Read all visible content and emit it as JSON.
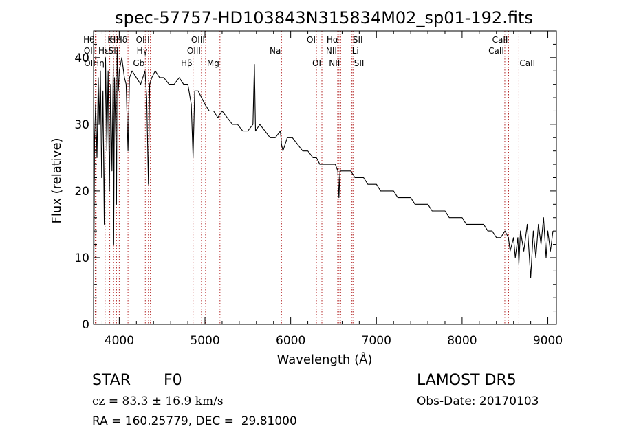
{
  "chart_data": {
    "type": "line",
    "title": "spec-57757-HD103843N315834M02_sp01-192.fits",
    "xlabel": "Wavelength (Å)",
    "ylabel": "Flux (relative)",
    "xlim": [
      3700,
      9100
    ],
    "ylim": [
      0,
      44
    ],
    "xticks": [
      4000,
      5000,
      6000,
      7000,
      8000,
      9000
    ],
    "yticks": [
      0,
      10,
      20,
      30,
      40
    ],
    "grid": false,
    "line_color": "#000000",
    "marker_color": "#b22222",
    "spectrum": {
      "x": [
        3700,
        3712,
        3725,
        3740,
        3755,
        3765,
        3780,
        3795,
        3810,
        3825,
        3840,
        3855,
        3870,
        3885,
        3900,
        3915,
        3930,
        3935,
        3945,
        3960,
        3968,
        3975,
        3990,
        4000,
        4030,
        4060,
        4080,
        4102,
        4120,
        4150,
        4200,
        4250,
        4300,
        4320,
        4340,
        4355,
        4380,
        4420,
        4470,
        4520,
        4580,
        4640,
        4700,
        4750,
        4800,
        4840,
        4861,
        4880,
        4920,
        4960,
        5000,
        5050,
        5100,
        5150,
        5200,
        5260,
        5320,
        5380,
        5440,
        5500,
        5560,
        5577,
        5590,
        5640,
        5700,
        5760,
        5820,
        5880,
        5893,
        5910,
        5960,
        6020,
        6080,
        6140,
        6200,
        6260,
        6300,
        6340,
        6400,
        6460,
        6520,
        6550,
        6563,
        6575,
        6600,
        6650,
        6700,
        6750,
        6800,
        6850,
        6900,
        6950,
        7000,
        7050,
        7100,
        7150,
        7200,
        7250,
        7300,
        7350,
        7400,
        7450,
        7500,
        7550,
        7600,
        7650,
        7700,
        7750,
        7800,
        7850,
        7900,
        7950,
        8000,
        8050,
        8100,
        8150,
        8200,
        8250,
        8300,
        8350,
        8400,
        8450,
        8500,
        8540,
        8560,
        8600,
        8620,
        8650,
        8662,
        8680,
        8720,
        8760,
        8800,
        8830,
        8860,
        8890,
        8920,
        8950,
        8980,
        9000,
        9030,
        9060
      ],
      "y": [
        0,
        28,
        33,
        25,
        37,
        30,
        38,
        22,
        35,
        15,
        40,
        26,
        38,
        20,
        36,
        23,
        39,
        12,
        37,
        28,
        18,
        41,
        35,
        38,
        40,
        37,
        36,
        26,
        37,
        38,
        37,
        36,
        38,
        34,
        21,
        36,
        37,
        38,
        37,
        37,
        36,
        36,
        37,
        36,
        36,
        33,
        25,
        35,
        35,
        34,
        33,
        32,
        32,
        31,
        32,
        31,
        30,
        30,
        29,
        29,
        30,
        39,
        29,
        30,
        29,
        28,
        28,
        29,
        27,
        26,
        28,
        28,
        27,
        26,
        26,
        25,
        25,
        24,
        24,
        24,
        24,
        23,
        19,
        23,
        23,
        23,
        23,
        22,
        22,
        22,
        21,
        21,
        21,
        20,
        20,
        20,
        20,
        19,
        19,
        19,
        19,
        18,
        18,
        18,
        18,
        17,
        17,
        17,
        17,
        16,
        16,
        16,
        16,
        15,
        15,
        15,
        15,
        15,
        14,
        14,
        13,
        13,
        14,
        13,
        11,
        13,
        10,
        13,
        9,
        14,
        11,
        15,
        7,
        14,
        10,
        15,
        12,
        16,
        10,
        14,
        11,
        14
      ]
    },
    "line_markers": [
      {
        "x": 3720,
        "label": "Hθ",
        "row": 1,
        "side": "left"
      },
      {
        "x": 3727,
        "label": "OII",
        "row": 2,
        "side": "left"
      },
      {
        "x": 3730,
        "label": "OII",
        "row": 3,
        "side": "left"
      },
      {
        "x": 3835,
        "label": "Hη",
        "row": 3,
        "side": "left"
      },
      {
        "x": 3889,
        "label": "Hε",
        "row": 2,
        "side": "left"
      },
      {
        "x": 3934,
        "label": "K",
        "row": 1,
        "side": "left"
      },
      {
        "x": 3968,
        "label": "H",
        "row": 1,
        "side": "left"
      },
      {
        "x": 4000,
        "label": "SII",
        "row": 2,
        "side": "left"
      },
      {
        "x": 4102,
        "label": "Hδ",
        "row": 1,
        "side": "left"
      },
      {
        "x": 4304,
        "label": "Gb",
        "row": 3,
        "side": "left"
      },
      {
        "x": 4340,
        "label": "Hγ",
        "row": 2,
        "side": "left"
      },
      {
        "x": 4363,
        "label": "OIII",
        "row": 1,
        "side": "left"
      },
      {
        "x": 4861,
        "label": "Hβ",
        "row": 3,
        "side": "left"
      },
      {
        "x": 4959,
        "label": "OIII",
        "row": 2,
        "side": "left"
      },
      {
        "x": 5007,
        "label": "OIII",
        "row": 1,
        "side": "left"
      },
      {
        "x": 5175,
        "label": "Mg",
        "row": 3,
        "side": "left"
      },
      {
        "x": 5893,
        "label": "Na",
        "row": 2,
        "side": "left"
      },
      {
        "x": 6300,
        "label": "OI",
        "row": 1,
        "side": "left"
      },
      {
        "x": 6364,
        "label": "OI",
        "row": 3,
        "side": "left"
      },
      {
        "x": 6548,
        "label": "NII",
        "row": 2,
        "side": "left"
      },
      {
        "x": 6563,
        "label": "Hα",
        "row": 1,
        "side": "left"
      },
      {
        "x": 6583,
        "label": "NII",
        "row": 3,
        "side": "left"
      },
      {
        "x": 6707,
        "label": "Li",
        "row": 2,
        "side": "right"
      },
      {
        "x": 6716,
        "label": "SII",
        "row": 1,
        "side": "right"
      },
      {
        "x": 6731,
        "label": "SII",
        "row": 3,
        "side": "right"
      },
      {
        "x": 8498,
        "label": "CaII",
        "row": 2,
        "side": "left"
      },
      {
        "x": 8542,
        "label": "CaII",
        "row": 1,
        "side": "left"
      },
      {
        "x": 8662,
        "label": "CaII",
        "row": 3,
        "side": "right"
      }
    ]
  },
  "info": {
    "class": "STAR",
    "subclass": "F0",
    "survey": "LAMOST DR5",
    "cz": "cz = 83.3 ± 16.9 km/s",
    "obs_date": "Obs-Date: 20170103",
    "coords": "RA = 160.25779, DEC =  29.81000"
  }
}
